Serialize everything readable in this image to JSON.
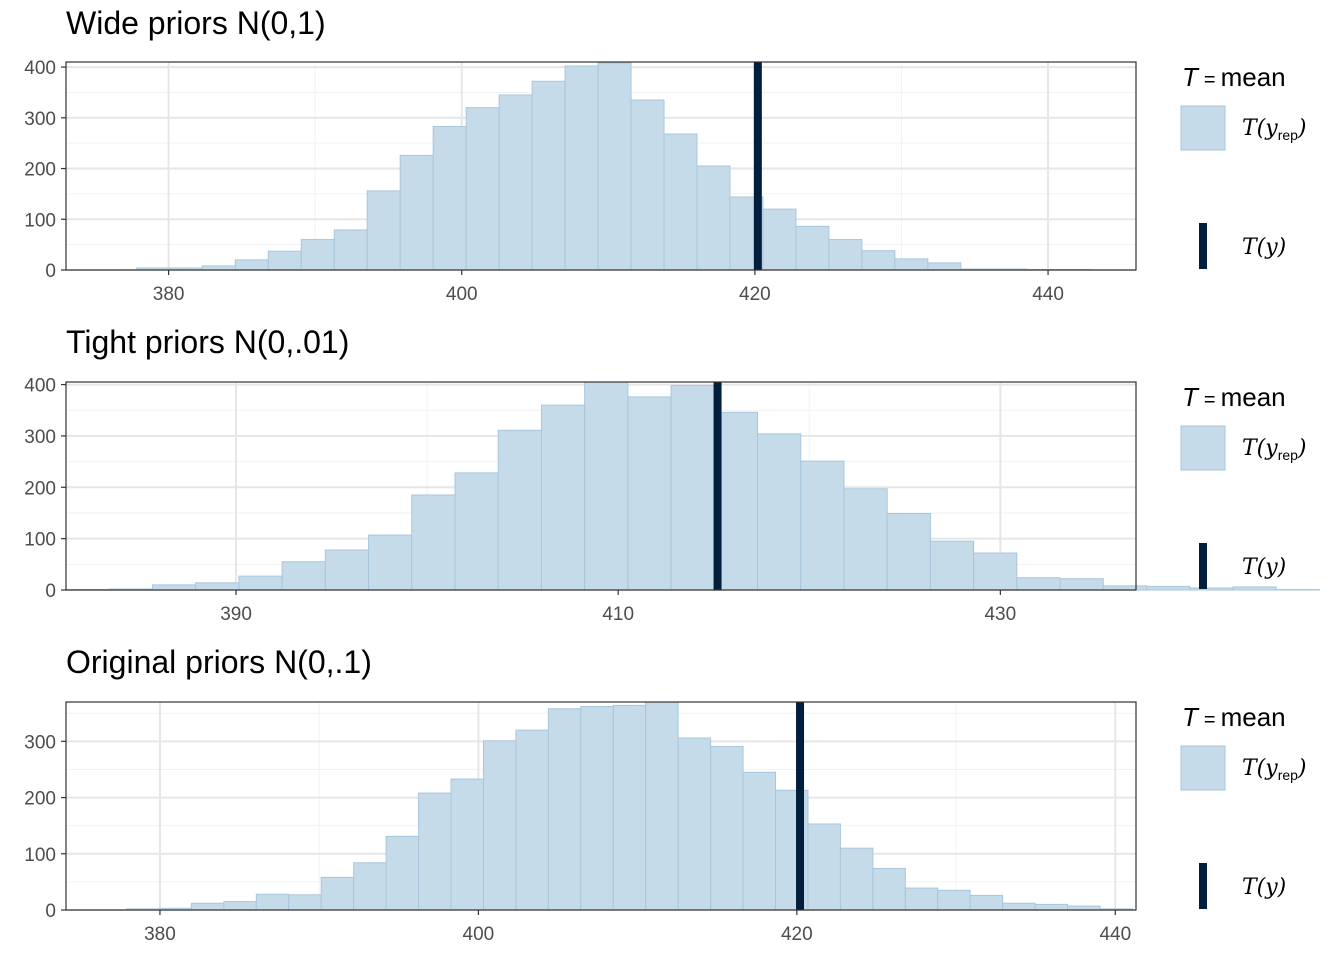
{
  "colors": {
    "bar_fill": "#c6dbe9",
    "bar_stroke": "#a9c6dd",
    "observed_line": "#011f3d",
    "grid_major": "#e6e6e6",
    "grid_minor": "#f2f2f2",
    "panel_border": "#333333"
  },
  "legend": {
    "stat_symbol": "T",
    "stat_equals": "=",
    "stat_name": "mean",
    "rep_label_main": "T(y",
    "rep_label_sub": "rep",
    "rep_label_close": ")",
    "obs_label": "T(y)"
  },
  "chart_data": [
    {
      "type": "bar",
      "title": "Wide priors N(0,1)",
      "xlim": [
        373,
        446
      ],
      "ylim": [
        0,
        410
      ],
      "xticks": [
        380,
        400,
        420,
        440
      ],
      "yticks": [
        0,
        100,
        200,
        300,
        400
      ],
      "bin_width": 2.25,
      "bin_start": 377.8,
      "counts": [
        4,
        4,
        8,
        20,
        37,
        60,
        79,
        156,
        226,
        283,
        320,
        345,
        372,
        402,
        408,
        335,
        268,
        205,
        144,
        120,
        86,
        60,
        38,
        22,
        14,
        2,
        2,
        1,
        1
      ],
      "observed": 420.2
    },
    {
      "type": "bar",
      "title": "Tight priors N(0,.01)",
      "xlim": [
        381.1,
        437.1
      ],
      "ylim": [
        0,
        405
      ],
      "xticks": [
        390,
        410,
        430
      ],
      "yticks": [
        0,
        100,
        200,
        300,
        400
      ],
      "bin_width": 2.262,
      "bin_start": 381.1,
      "counts": [
        1,
        2,
        10,
        14,
        27,
        55,
        78,
        107,
        185,
        228,
        311,
        360,
        405,
        376,
        398,
        346,
        304,
        251,
        197,
        149,
        95,
        72,
        24,
        22,
        8,
        7,
        4,
        6,
        1
      ],
      "observed": 415.2
    },
    {
      "type": "bar",
      "title": "Original priors N(0,.1)",
      "xlim": [
        374.1,
        441.3
      ],
      "ylim": [
        0,
        370
      ],
      "xticks": [
        380,
        400,
        420,
        440
      ],
      "yticks": [
        0,
        100,
        200,
        300
      ],
      "bin_width": 2.038,
      "bin_start": 377.9,
      "counts": [
        2,
        3,
        12,
        15,
        28,
        27,
        58,
        84,
        131,
        208,
        233,
        301,
        320,
        358,
        362,
        364,
        372,
        306,
        291,
        245,
        213,
        153,
        110,
        74,
        39,
        35,
        26,
        12,
        10,
        7,
        2
      ],
      "observed": 420.2
    }
  ]
}
